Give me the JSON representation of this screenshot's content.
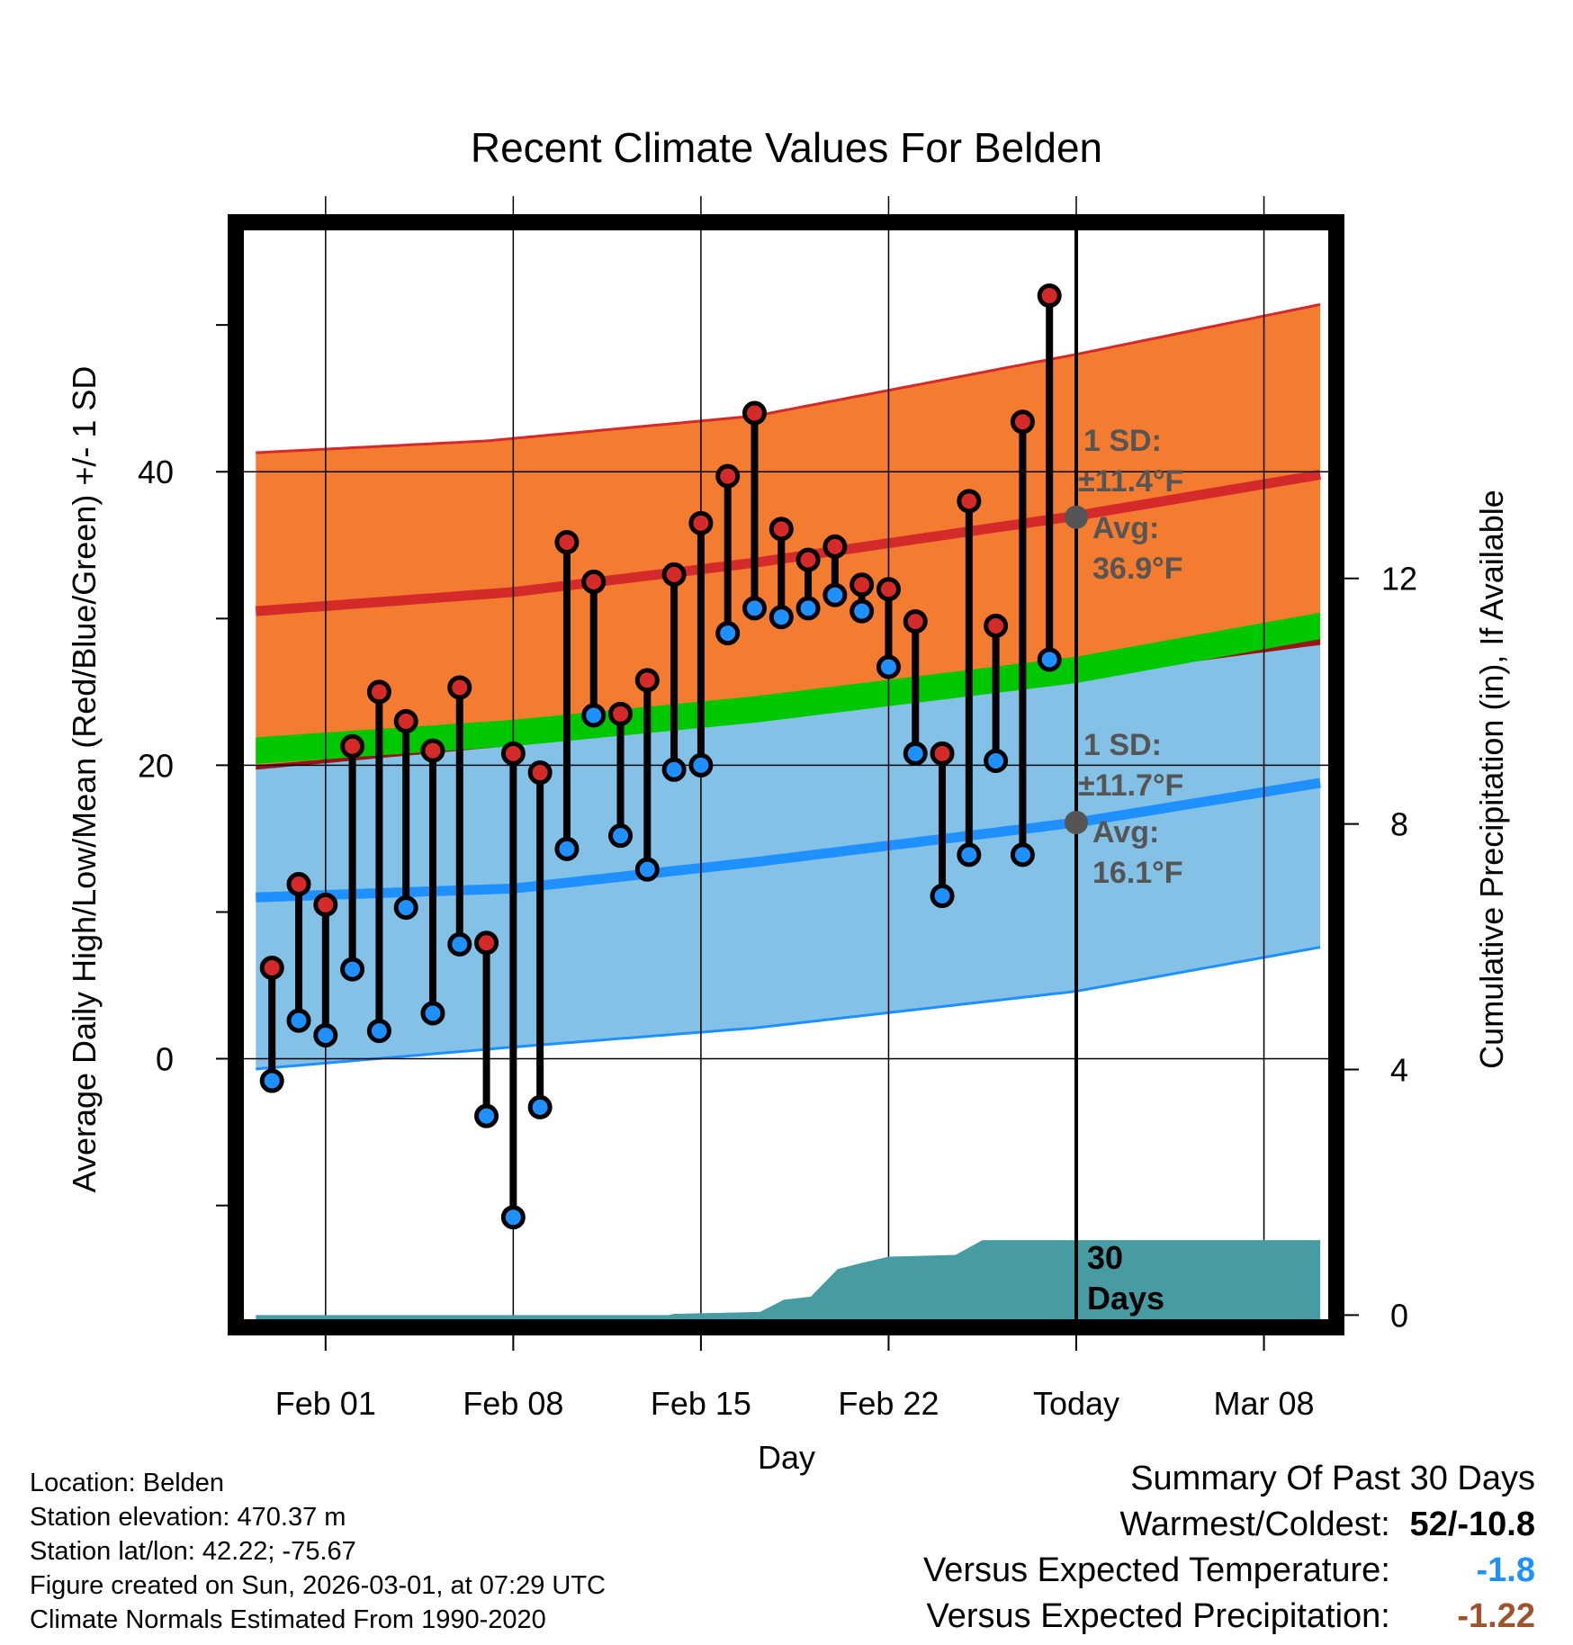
{
  "chart_data": {
    "type": "line",
    "title": "Recent Climate Values For Belden",
    "xlabel": "Day",
    "ylabel": "Average Daily High/Low/Mean (Red/Blue/Green) +/- 1 SD",
    "y2label": "Cumulative Precipitation (in), If Available",
    "x_ticks": [
      {
        "label": "Feb 01",
        "day": 2
      },
      {
        "label": "Feb 08",
        "day": 9
      },
      {
        "label": "Feb 15",
        "day": 16
      },
      {
        "label": "Feb 22",
        "day": 23
      },
      {
        "label": "Today",
        "day": 30
      },
      {
        "label": "Mar 08",
        "day": 37
      }
    ],
    "xlim": [
      -1.35,
      39.7
    ],
    "ylim": [
      -18.3,
      57
    ],
    "y_ticks": [
      0,
      20,
      40
    ],
    "y_minor_ticks": [
      -10,
      10,
      30,
      50
    ],
    "y2lim": [
      -0.2,
      17.8
    ],
    "y2_ticks": [
      0,
      4,
      8,
      12
    ],
    "days": [
      0,
      1,
      2,
      3,
      4,
      5,
      6,
      7,
      8,
      9,
      10,
      11,
      12,
      13,
      14,
      15,
      16,
      17,
      18,
      19,
      20,
      21,
      22,
      23,
      24,
      25,
      26,
      27,
      28,
      29
    ],
    "series": [
      {
        "name": "Daily High",
        "color": "#d42a2a",
        "values": [
          6.2,
          11.9,
          10.5,
          21.3,
          25.0,
          23.0,
          21.0,
          25.3,
          7.9,
          20.8,
          19.5,
          35.2,
          32.5,
          23.5,
          25.8,
          33.0,
          36.5,
          39.7,
          44.0,
          36.1,
          34.0,
          34.9,
          32.3,
          32.0,
          29.8,
          20.8,
          38.0,
          29.5,
          43.4,
          52.0
        ]
      },
      {
        "name": "Daily Low",
        "color": "#1e90ff",
        "values": [
          -1.5,
          2.6,
          1.6,
          6.1,
          1.9,
          10.3,
          3.1,
          7.8,
          -3.9,
          -10.8,
          -3.3,
          14.3,
          23.4,
          15.2,
          12.9,
          19.7,
          20.0,
          29.0,
          30.7,
          30.1,
          30.7,
          31.6,
          30.5,
          26.7,
          20.8,
          11.1,
          13.9,
          20.3,
          13.9,
          27.2
        ]
      },
      {
        "name": "Normal High",
        "color": "#d42a2a",
        "curve": [
          [
            -0.6,
            30.5
          ],
          [
            9,
            31.8
          ],
          [
            18,
            33.8
          ],
          [
            30,
            37.0
          ],
          [
            39.1,
            39.8
          ]
        ]
      },
      {
        "name": "Normal High +1 SD",
        "color": "#d42a2a",
        "curve": [
          [
            -0.6,
            41.3
          ],
          [
            8,
            42.1
          ],
          [
            18,
            43.8
          ],
          [
            30,
            48.0
          ],
          [
            39.1,
            51.4
          ]
        ]
      },
      {
        "name": "Normal Mean",
        "color": "#00c800",
        "curve": [
          [
            -0.6,
            21.0
          ],
          [
            9,
            22.2
          ],
          [
            18,
            23.8
          ],
          [
            30,
            26.5
          ],
          [
            39.1,
            29.5
          ]
        ]
      },
      {
        "name": "Normal Low",
        "color": "#1e90ff",
        "curve": [
          [
            -0.6,
            11.0
          ],
          [
            9,
            11.6
          ],
          [
            18,
            13.4
          ],
          [
            30,
            16.1
          ],
          [
            39.1,
            18.8
          ]
        ]
      },
      {
        "name": "Normal Low +1 SD (upper)",
        "color": "#1e90ff",
        "curve": [
          [
            -0.6,
            20.0
          ],
          [
            9,
            21.5
          ],
          [
            18,
            23.3
          ],
          [
            30,
            26.2
          ],
          [
            39.1,
            28.8
          ]
        ]
      },
      {
        "name": "Normal Low -1 SD (lower)",
        "color": "#1e90ff",
        "curve": [
          [
            -0.6,
            -0.7
          ],
          [
            9,
            0.8
          ],
          [
            18,
            2.1
          ],
          [
            30,
            4.6
          ],
          [
            39.1,
            7.6
          ]
        ]
      },
      {
        "name": "Cumulative Precipitation",
        "color": "#479ca3",
        "curve": [
          [
            -0.6,
            0
          ],
          [
            14.8,
            0
          ],
          [
            15,
            0.02
          ],
          [
            18.2,
            0.05
          ],
          [
            19.1,
            0.25
          ],
          [
            20.1,
            0.3
          ],
          [
            21.1,
            0.75
          ],
          [
            22,
            0.85
          ],
          [
            23,
            0.95
          ],
          [
            25.5,
            0.98
          ],
          [
            26.5,
            1.22
          ],
          [
            39.1,
            1.22
          ]
        ]
      }
    ],
    "annotations": {
      "high_sd_label": "1 SD:",
      "high_sd_value": "±11.4°F",
      "high_avg_label": "Avg:",
      "high_avg_value": "36.9°F",
      "high_avg_point": 36.9,
      "low_sd_label": "1 SD:",
      "low_sd_value": "±11.7°F",
      "low_avg_label": "Avg:",
      "low_avg_value": "16.1°F",
      "low_avg_point": 16.1,
      "precip_days_line1": "30",
      "precip_days_line2": "Days"
    },
    "today_day": 30,
    "grid": true
  },
  "footer": {
    "location": "Location: Belden",
    "elevation": "Station elevation: 470.37 m",
    "latlon": "Station lat/lon: 42.22; -75.67",
    "created": "Figure created on Sun, 2026-03-01, at 07:29 UTC",
    "normals": "Climate Normals Estimated From 1990-2020"
  },
  "summary": {
    "heading": "Summary Of Past 30 Days",
    "warm_cold_label": "Warmest/Coldest:",
    "warm_cold_value": "52/-10.8",
    "temp_label": "Versus Expected Temperature:",
    "temp_value": "-1.8",
    "temp_color": "#1e90ff",
    "precip_label": "Versus Expected Precipitation:",
    "precip_value": "-1.22",
    "precip_color": "#a0522d"
  }
}
